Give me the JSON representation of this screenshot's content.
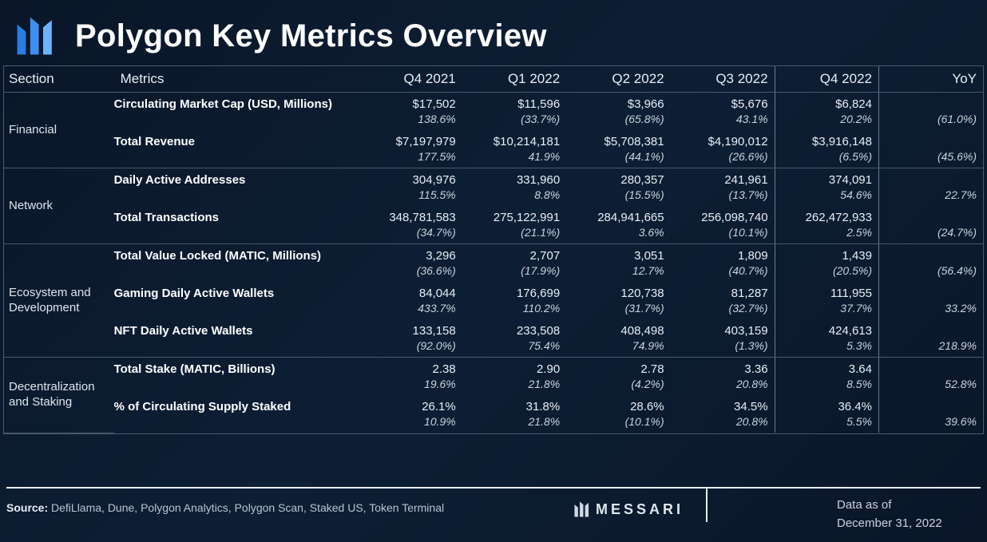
{
  "title": "Polygon Key Metrics Overview",
  "columns": [
    "Section",
    "Metrics",
    "Q4 2021",
    "Q1 2022",
    "Q2 2022",
    "Q3 2022",
    "Q4 2022",
    "YoY"
  ],
  "sections": [
    {
      "name": "Financial",
      "metrics": [
        {
          "label": "Circulating Market Cap (USD, Millions)",
          "values": [
            "$17,502",
            "$11,596",
            "$3,966",
            "$5,676",
            "$6,824",
            ""
          ],
          "changes": [
            "138.6%",
            "(33.7%)",
            "(65.8%)",
            "43.1%",
            "20.2%",
            "(61.0%)"
          ]
        },
        {
          "label": "Total Revenue",
          "values": [
            "$7,197,979",
            "$10,214,181",
            "$5,708,381",
            "$4,190,012",
            "$3,916,148",
            ""
          ],
          "changes": [
            "177.5%",
            "41.9%",
            "(44.1%)",
            "(26.6%)",
            "(6.5%)",
            "(45.6%)"
          ]
        }
      ]
    },
    {
      "name": "Network",
      "metrics": [
        {
          "label": "Daily Active Addresses",
          "values": [
            "304,976",
            "331,960",
            "280,357",
            "241,961",
            "374,091",
            ""
          ],
          "changes": [
            "115.5%",
            "8.8%",
            "(15.5%)",
            "(13.7%)",
            "54.6%",
            "22.7%"
          ]
        },
        {
          "label": "Total Transactions",
          "values": [
            "348,781,583",
            "275,122,991",
            "284,941,665",
            "256,098,740",
            "262,472,933",
            ""
          ],
          "changes": [
            "(34.7%)",
            "(21.1%)",
            "3.6%",
            "(10.1%)",
            "2.5%",
            "(24.7%)"
          ]
        }
      ]
    },
    {
      "name": "Ecosystem and Development",
      "metrics": [
        {
          "label": "Total Value Locked (MATIC, Millions)",
          "values": [
            "3,296",
            "2,707",
            "3,051",
            "1,809",
            "1,439",
            ""
          ],
          "changes": [
            "(36.6%)",
            "(17.9%)",
            "12.7%",
            "(40.7%)",
            "(20.5%)",
            "(56.4%)"
          ]
        },
        {
          "label": "Gaming Daily Active Wallets",
          "values": [
            "84,044",
            "176,699",
            "120,738",
            "81,287",
            "111,955",
            ""
          ],
          "changes": [
            "433.7%",
            "110.2%",
            "(31.7%)",
            "(32.7%)",
            "37.7%",
            "33.2%"
          ]
        },
        {
          "label": "NFT Daily Active Wallets",
          "values": [
            "133,158",
            "233,508",
            "408,498",
            "403,159",
            "424,613",
            ""
          ],
          "changes": [
            "(92.0%)",
            "75.4%",
            "74.9%",
            "(1.3%)",
            "5.3%",
            "218.9%"
          ]
        }
      ]
    },
    {
      "name": "Decentralization and Staking",
      "metrics": [
        {
          "label": "Total Stake (MATIC, Billions)",
          "values": [
            "2.38",
            "2.90",
            "2.78",
            "3.36",
            "3.64",
            ""
          ],
          "changes": [
            "19.6%",
            "21.8%",
            "(4.2%)",
            "20.8%",
            "8.5%",
            "52.8%"
          ]
        },
        {
          "label": "% of Circulating Supply Staked",
          "values": [
            "26.1%",
            "31.8%",
            "28.6%",
            "34.5%",
            "36.4%",
            ""
          ],
          "changes": [
            "10.9%",
            "21.8%",
            "(10.1%)",
            "20.8%",
            "5.5%",
            "39.6%"
          ]
        }
      ]
    }
  ],
  "footer": {
    "source_label": "Source:",
    "source_text": "DefiLlama, Dune, Polygon Analytics, Polygon Scan, Staked US, Token Terminal",
    "brand": "MESSARI",
    "asof_label": "Data as of",
    "asof_date": "December 31, 2022"
  },
  "colors": {
    "bg_from": "#0a1628",
    "bg_to": "#0d1f35",
    "text": "#e8eef5",
    "muted": "#c9d3de",
    "border": "#4a5a6e",
    "divider": "#6b7a8e"
  }
}
